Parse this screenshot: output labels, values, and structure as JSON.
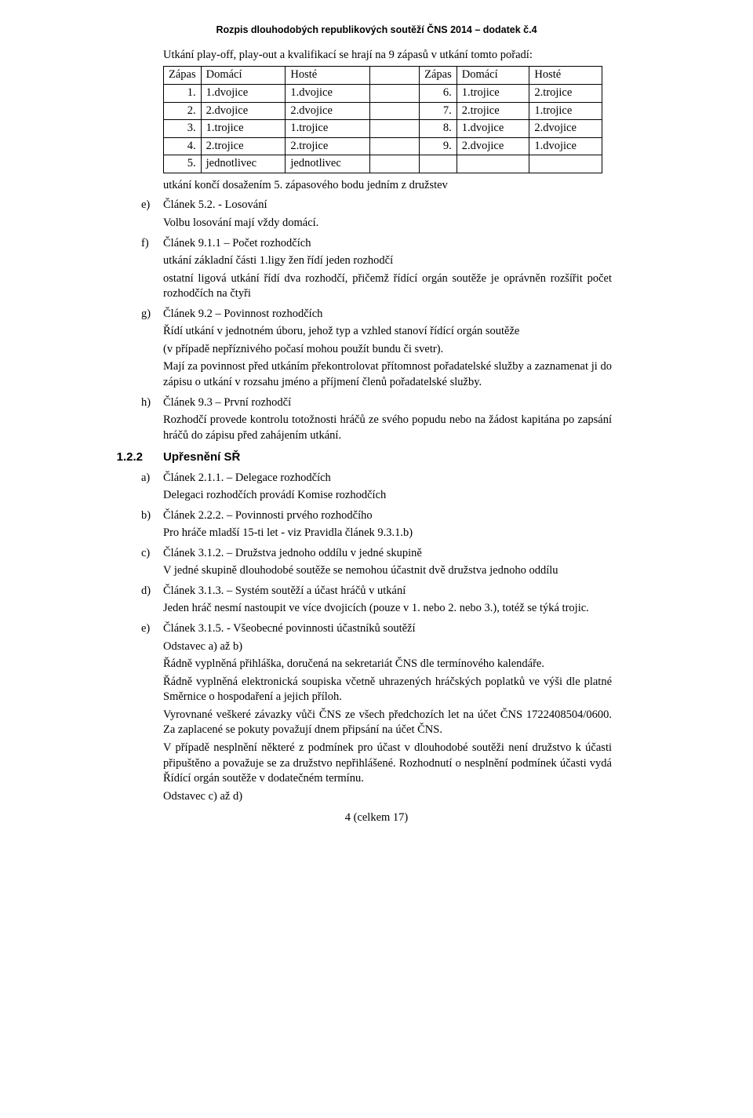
{
  "header": "Rozpis dlouhodobých republikových soutěží ČNS 2014 – dodatek č.4",
  "intro": "Utkání play-off, play-out a kvalifikací se hrají na 9 zápasů v utkání tomto pořadí:",
  "table": {
    "headers": [
      "Zápas",
      "Domácí",
      "Hosté",
      "",
      "Zápas",
      "Domácí",
      "Hosté"
    ],
    "rows": [
      [
        "1.",
        "1.dvojice",
        "1.dvojice",
        "",
        "6.",
        "1.trojice",
        "2.trojice"
      ],
      [
        "2.",
        "2.dvojice",
        "2.dvojice",
        "",
        "7.",
        "2.trojice",
        "1.trojice"
      ],
      [
        "3.",
        "1.trojice",
        "1.trojice",
        "",
        "8.",
        "1.dvojice",
        "2.dvojice"
      ],
      [
        "4.",
        "2.trojice",
        "2.trojice",
        "",
        "9.",
        "2.dvojice",
        "1.dvojice"
      ],
      [
        "5.",
        "jednotlivec",
        "jednotlivec",
        "",
        "",
        "",
        ""
      ]
    ]
  },
  "after_table": "utkání končí dosažením 5. zápasového bodu jedním z družstev",
  "items1": [
    {
      "marker": "e)",
      "title": "Článek 5.2. - Losování",
      "paras": [
        "Volbu losování mají vždy domácí."
      ]
    },
    {
      "marker": "f)",
      "title": "Článek 9.1.1 – Počet rozhodčích",
      "paras": [
        "utkání základní části 1.ligy žen řídí jeden rozhodčí",
        "ostatní ligová utkání řídí dva rozhodčí, přičemž řídící orgán soutěže je oprávněn rozšířit počet rozhodčích na čtyři"
      ]
    },
    {
      "marker": "g)",
      "title": "Článek 9.2 – Povinnost rozhodčích",
      "paras": [
        "Řídí utkání v jednotném úboru, jehož typ a vzhled stanoví řídící orgán soutěže",
        "(v případě nepříznivého počasí mohou použít bundu či svetr).",
        "Mají za povinnost před utkáním překontrolovat přítomnost pořadatelské služby a zaznamenat ji do zápisu o utkání v rozsahu jméno a příjmení členů pořadatelské služby."
      ]
    },
    {
      "marker": "h)",
      "title": "Článek 9.3 – První rozhodčí",
      "paras": [
        "Rozhodčí provede kontrolu totožnosti hráčů ze svého popudu nebo na žádost kapitána po zapsání hráčů do zápisu před zahájením utkání."
      ]
    }
  ],
  "section": {
    "num": "1.2.2",
    "title": "Upřesnění SŘ"
  },
  "items2": [
    {
      "marker": "a)",
      "title": "Článek 2.1.1. – Delegace rozhodčích",
      "paras": [
        "Delegaci rozhodčích provádí Komise rozhodčích"
      ]
    },
    {
      "marker": "b)",
      "title": "Článek 2.2.2. – Povinnosti prvého rozhodčího",
      "paras": [
        "Pro hráče mladší 15-ti let - viz Pravidla článek 9.3.1.b)"
      ]
    },
    {
      "marker": "c)",
      "title": "Článek 3.1.2. – Družstva jednoho oddílu v jedné skupině",
      "paras": [
        "V jedné skupině dlouhodobé soutěže se nemohou účastnit dvě družstva jednoho oddílu"
      ]
    },
    {
      "marker": "d)",
      "title": "Článek 3.1.3. – Systém soutěží a účast hráčů v utkání",
      "paras": [
        "Jeden hráč nesmí nastoupit ve více dvojicích (pouze v 1. nebo 2. nebo 3.), totéž se týká trojic."
      ]
    },
    {
      "marker": "e)",
      "title": "Článek 3.1.5. - Všeobecné povinnosti účastníků soutěží",
      "paras": [
        "Odstavec a) až b)",
        "Řádně vyplněná přihláška, doručená na sekretariát ČNS dle termínového kalendáře.",
        "Řádně vyplněná elektronická soupiska včetně uhrazených hráčských poplatků ve výši dle platné Směrnice o hospodaření a jejich příloh.",
        "Vyrovnané veškeré závazky vůči ČNS ze všech předchozích let na účet ČNS 1722408504/0600. Za zaplacené se pokuty považují dnem připsání na účet ČNS.",
        "V případě nesplnění některé z podmínek pro účast v dlouhodobé soutěži není družstvo k účasti připuštěno a považuje se za družstvo nepřihlášené. Rozhodnutí o nesplnění podmínek účasti vydá Řídící orgán soutěže v dodatečném termínu.",
        "Odstavec c) až d)"
      ]
    }
  ],
  "footer": "4 (celkem 17)"
}
